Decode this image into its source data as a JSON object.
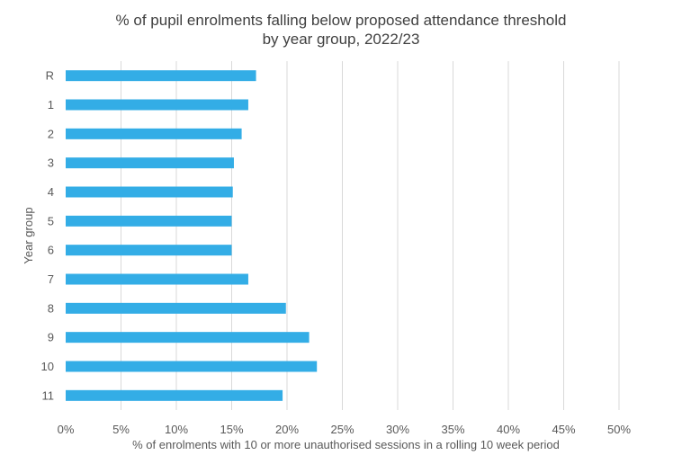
{
  "chart_data": {
    "type": "bar",
    "orientation": "horizontal",
    "title_line1": "% of pupil enrolments falling below proposed attendance threshold",
    "title_line2": "by year group, 2022/23",
    "categories": [
      "R",
      "1",
      "2",
      "3",
      "4",
      "5",
      "6",
      "7",
      "8",
      "9",
      "10",
      "11"
    ],
    "values": [
      17.2,
      16.5,
      15.9,
      15.2,
      15.1,
      15.0,
      15.0,
      16.5,
      19.9,
      22.0,
      22.7,
      19.6
    ],
    "xlabel": "% of enrolments with 10 or more unauthorised sessions in a rolling 10 week period",
    "ylabel": "Year group",
    "xlim": [
      0,
      50
    ],
    "xticks": [
      0,
      5,
      10,
      15,
      20,
      25,
      30,
      35,
      40,
      45,
      50
    ],
    "xtick_suffix": "%",
    "gridlines": true,
    "bar_color": "#33ADE6",
    "grid_color": "#D9D9D9"
  }
}
